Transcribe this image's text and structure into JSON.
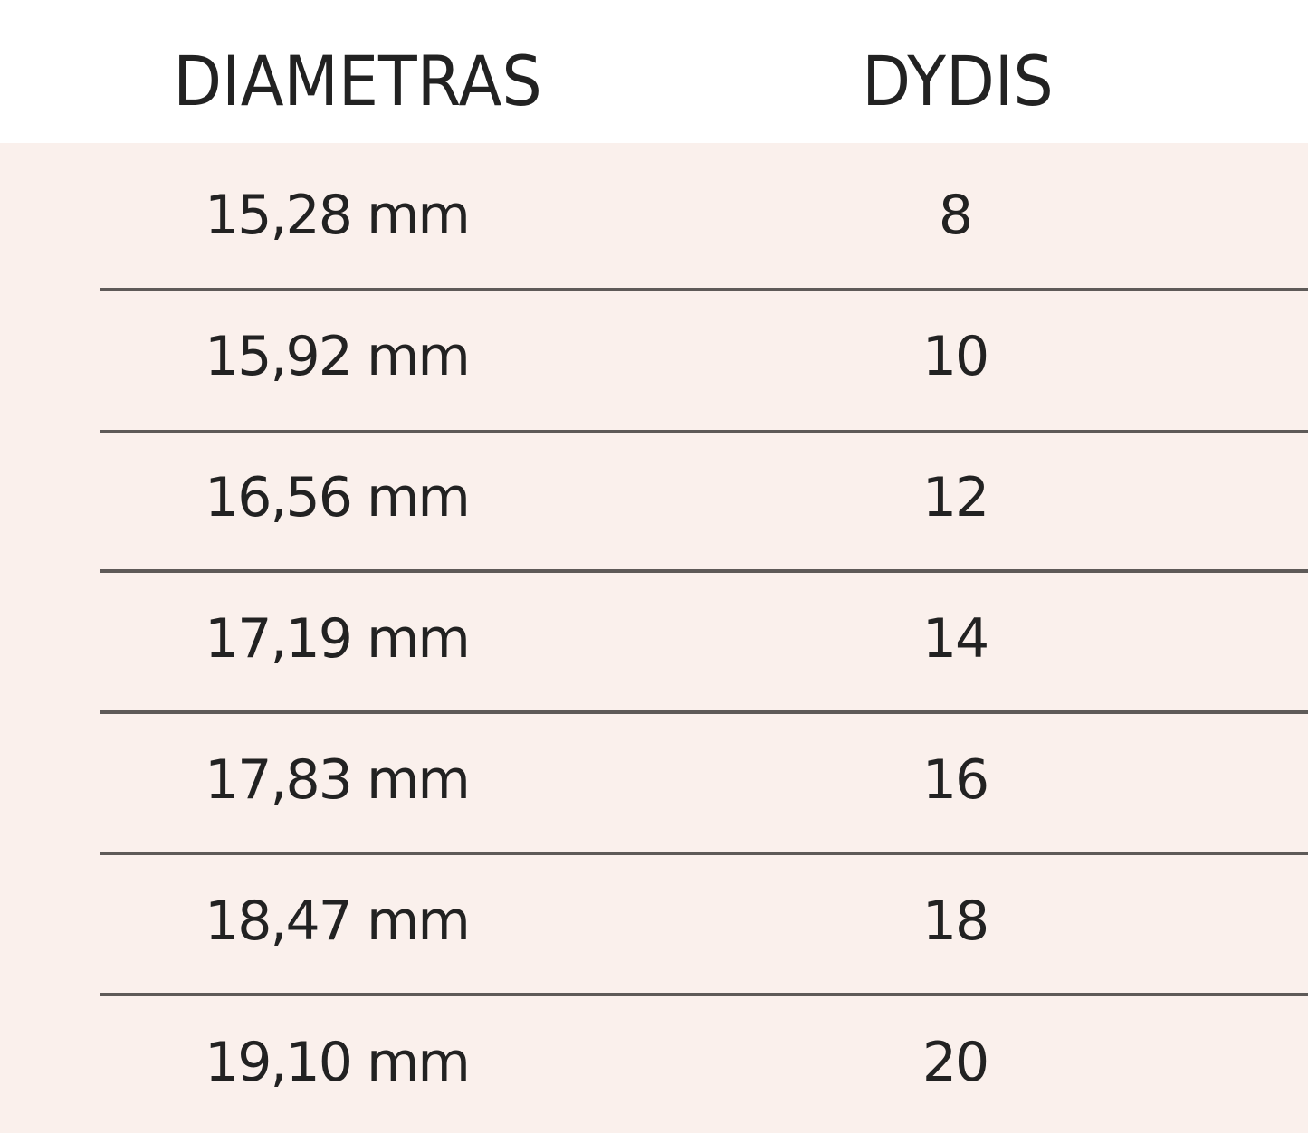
{
  "table": {
    "headers": [
      "DIAMETRAS",
      "DYDIS"
    ],
    "rows": [
      [
        "15,28 mm",
        "8"
      ],
      [
        "15,92 mm",
        "10"
      ],
      [
        "16,56 mm",
        "12"
      ],
      [
        "17,19 mm",
        "14"
      ],
      [
        "17,83 mm",
        "16"
      ],
      [
        "18,47 mm",
        "18"
      ],
      [
        "19,10 mm",
        "20"
      ]
    ],
    "colors": {
      "row_background": "#faf0ec",
      "header_background": "#ffffff",
      "divider": "#5e5a58",
      "text": "#222222"
    }
  }
}
